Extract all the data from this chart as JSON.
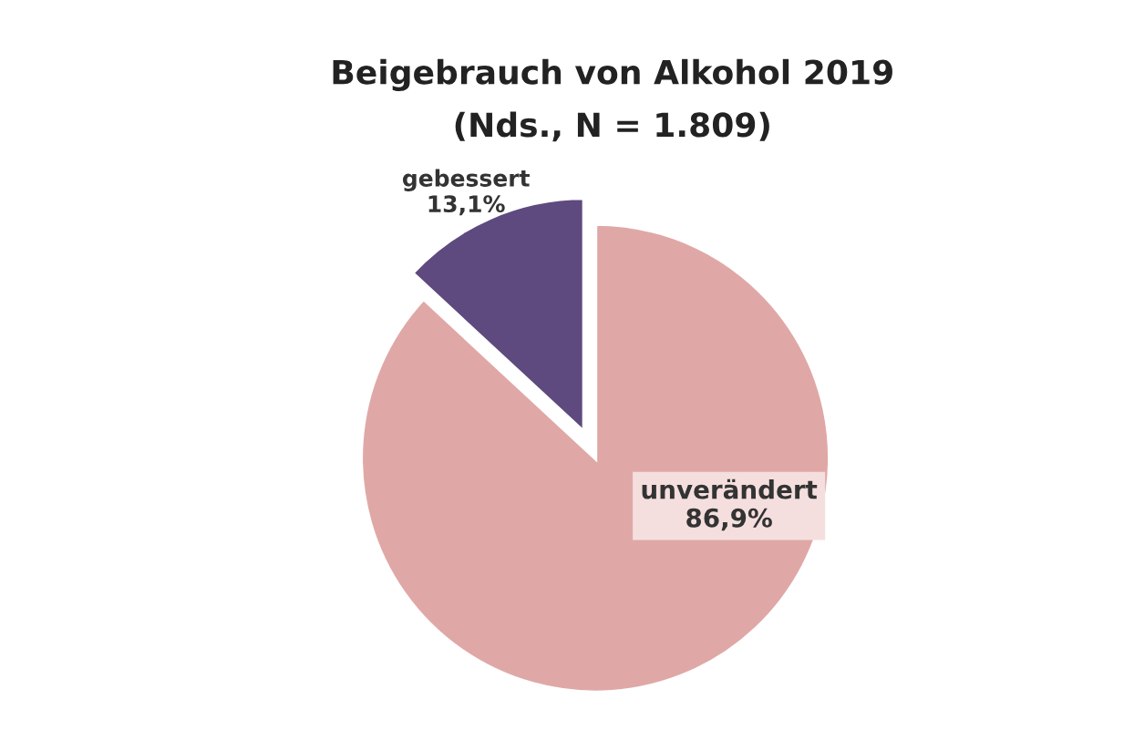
{
  "chart_data": {
    "type": "pie",
    "title": "Beigebrauch von Alkohol 2019",
    "subtitle": "(Nds., N = 1.809)",
    "categories": [
      "gebessert",
      "unverändert"
    ],
    "values": [
      13.1,
      86.9
    ],
    "colors": [
      "#5e4a7e",
      "#dfa8a6"
    ],
    "value_labels": [
      "13,1%",
      "86,9%"
    ],
    "legend": false
  }
}
